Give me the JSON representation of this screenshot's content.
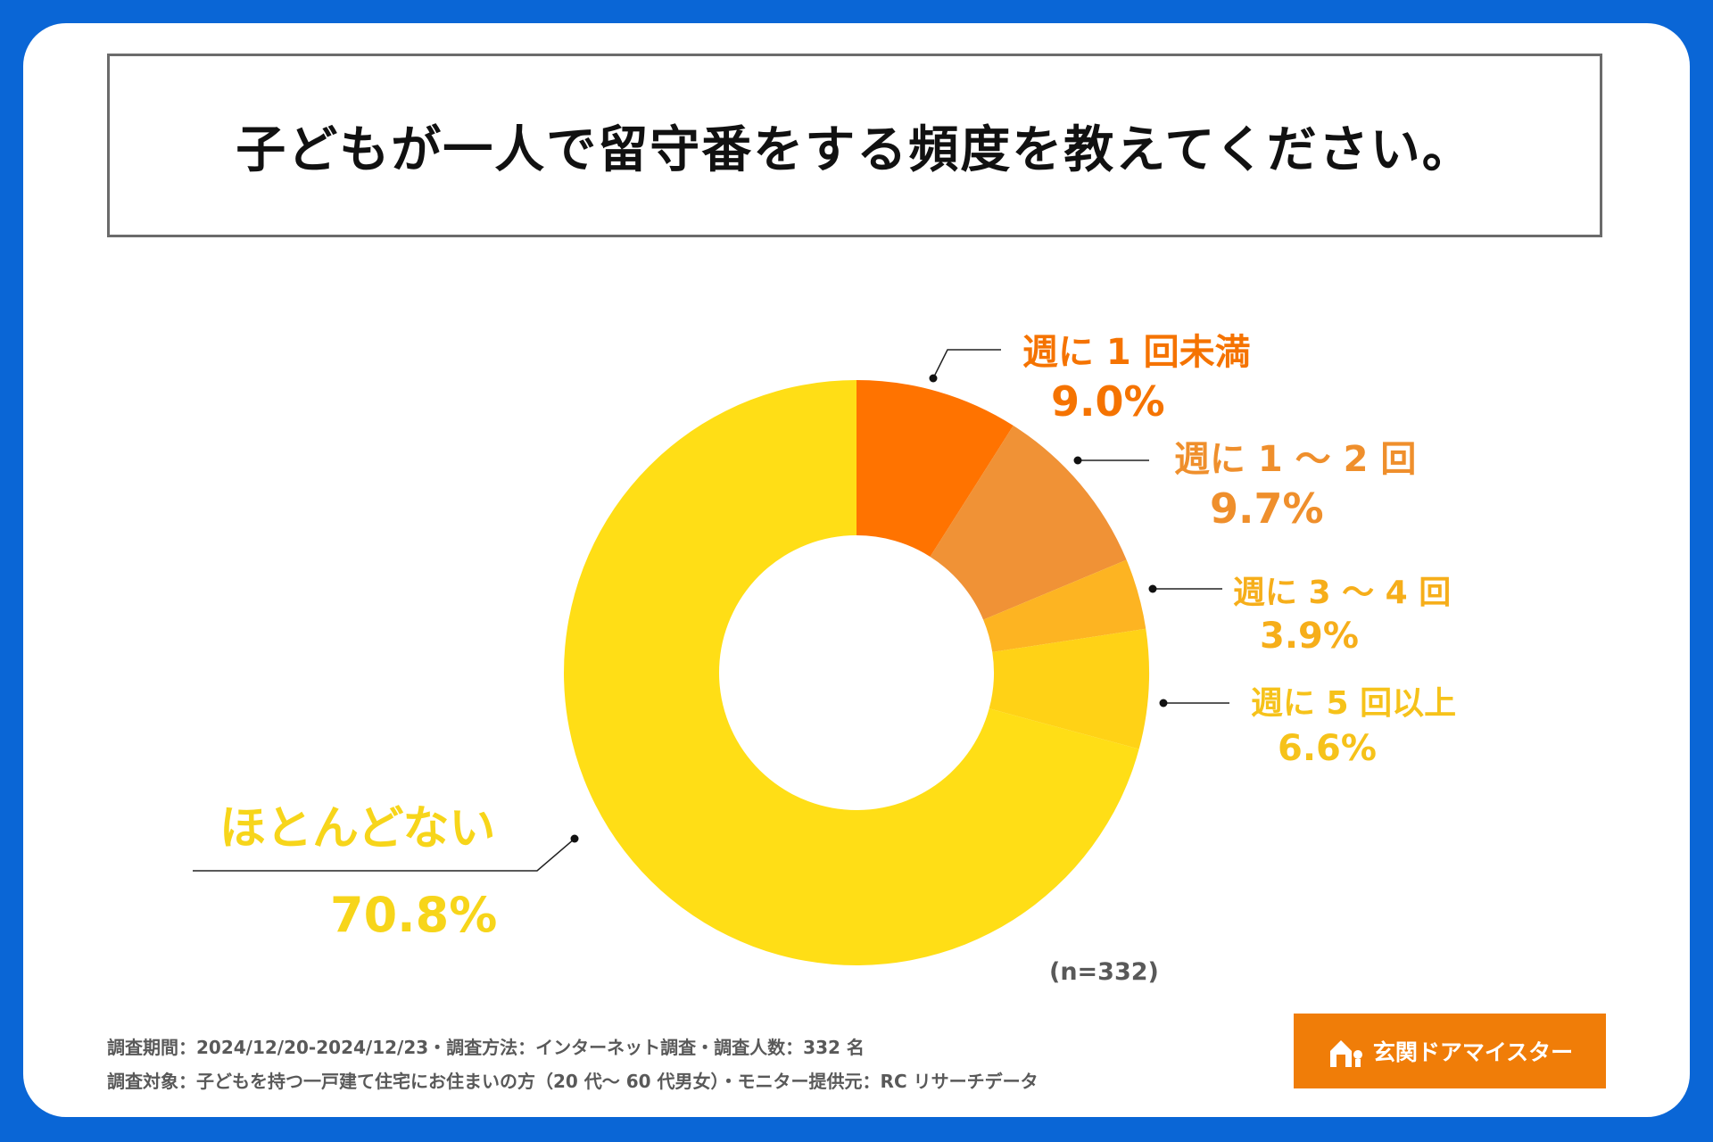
{
  "title": "子どもが一人で留守番をする頻度を教えてください。",
  "chart_data": {
    "type": "pie",
    "donut": true,
    "categories": [
      "週に１回未満",
      "週に１～２回",
      "週に３～４回",
      "週に５回以上",
      "ほとんどない"
    ],
    "labels": [
      "週に 1 回未満",
      "週に 1 ～ 2 回",
      "週に 3 ～ 4 回",
      "週に 5 回以上",
      "ほとんどない"
    ],
    "values": [
      9.0,
      9.7,
      3.9,
      6.6,
      70.8
    ],
    "value_labels": [
      "9.0%",
      "9.7%",
      "3.9%",
      "6.6%",
      "70.8%"
    ],
    "colors": [
      "#ff7300",
      "#f09236",
      "#fdb422",
      "#ffd216",
      "#ffde16"
    ],
    "label_colors": [
      "#f57300",
      "#ef8f2c",
      "#f6ae1a",
      "#f6c21a",
      "#f7d51a"
    ],
    "unit": "%"
  },
  "sample_size": "(n=332)",
  "footer": {
    "line1": "調査期間：2024/12/20-2024/12/23・調査方法：インターネット調査・調査人数：332 名",
    "line2": "調査対象：子どもを持つ一戸建て住宅にお住まいの方（20 代～ 60 代男女）・モニター提供元：RC リサーチデータ"
  },
  "logo": {
    "text": "玄関ドアマイスター",
    "icon": "house-door-icon",
    "background": "#f07d08"
  }
}
